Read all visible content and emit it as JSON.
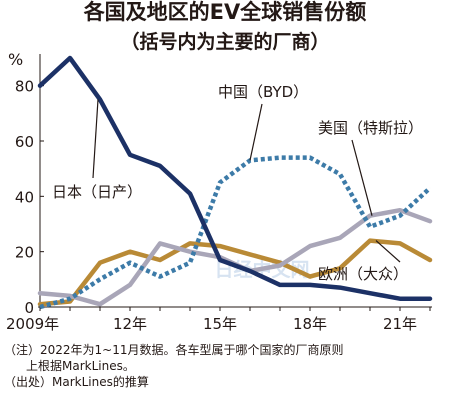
{
  "title": "各国及地区的EV全球销售份额",
  "subtitle": "（括号内为主要的厂商）",
  "watermark": "日经中文网",
  "notes": {
    "line1": "（注）2022年为1~11月数据。各车型属于哪个国家的厂商原则",
    "line2": "上根据MarkLines。",
    "source": "（出处）MarkLines的推算"
  },
  "chart_data": {
    "type": "line",
    "title": "各国及地区的EV全球销售份额",
    "subtitle": "（括号内为主要的厂商）",
    "ylabel": "%",
    "xlabel": "",
    "x": [
      2009,
      2010,
      2011,
      2012,
      2013,
      2014,
      2015,
      2016,
      2017,
      2018,
      2019,
      2020,
      2021,
      2022
    ],
    "xlim": [
      2009,
      2022
    ],
    "ylim": [
      0,
      90
    ],
    "x_tick_labels": [
      "2009年",
      "12年",
      "15年",
      "18年",
      "21年"
    ],
    "x_ticks": [
      2009,
      2012,
      2015,
      2018,
      2021
    ],
    "y_ticks": [
      0,
      20,
      40,
      60,
      80
    ],
    "grid": false,
    "series": [
      {
        "name": "日本（日产）",
        "color": "#1c3166",
        "style": "solid",
        "values": [
          80,
          90,
          75,
          55,
          51,
          41,
          17,
          13,
          8,
          8,
          7,
          5,
          3,
          3
        ]
      },
      {
        "name": "中国（BYD）",
        "color": "#3d7ba8",
        "style": "dotted",
        "values": [
          0,
          3,
          10,
          16,
          11,
          16,
          45,
          53,
          54,
          54,
          48,
          29,
          33,
          43
        ]
      },
      {
        "name": "美国（特斯拉）",
        "color": "#a9a6b8",
        "style": "solid",
        "values": [
          5,
          4,
          1,
          8,
          23,
          20,
          18,
          13,
          15,
          22,
          25,
          33,
          35,
          31
        ]
      },
      {
        "name": "欧洲（大众）",
        "color": "#b98a36",
        "style": "solid",
        "values": [
          1,
          2,
          16,
          20,
          17,
          23,
          22,
          19,
          16,
          11,
          14,
          24,
          23,
          17
        ]
      }
    ]
  }
}
